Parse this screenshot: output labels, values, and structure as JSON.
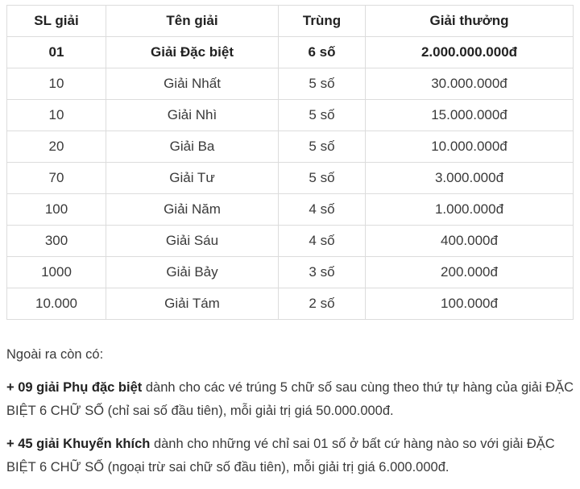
{
  "table": {
    "headers": [
      "SL giải",
      "Tên giải",
      "Trùng",
      "Giải thưởng"
    ],
    "rows": [
      [
        "01",
        "Giải Đặc biệt",
        "6 số",
        "2.000.000.000đ"
      ],
      [
        "10",
        "Giải Nhất",
        "5 số",
        "30.000.000đ"
      ],
      [
        "10",
        "Giải Nhì",
        "5 số",
        "15.000.000đ"
      ],
      [
        "20",
        "Giải Ba",
        "5 số",
        "10.000.000đ"
      ],
      [
        "70",
        "Giải Tư",
        "5 số",
        "3.000.000đ"
      ],
      [
        "100",
        "Giải Năm",
        "4 số",
        "1.000.000đ"
      ],
      [
        "300",
        "Giải Sáu",
        "4 số",
        "400.000đ"
      ],
      [
        "1000",
        "Giải Bảy",
        "3 số",
        "200.000đ"
      ],
      [
        "10.000",
        "Giải Tám",
        "2 số",
        "100.000đ"
      ]
    ]
  },
  "notes": {
    "intro": "Ngoài ra còn có:",
    "p1_bold": "+ 09 giải Phụ đặc biệt",
    "p1_text": " dành cho các vé trúng 5 chữ số sau cùng theo thứ tự hàng của giải ĐẶC BIỆT 6 CHỮ SỐ (chỉ sai số đầu tiên), mỗi giải trị giá 50.000.000đ.",
    "p2_bold": "+ 45 giải Khuyến khích",
    "p2_text": " dành cho những vé chỉ sai 01 số ở bất cứ hàng nào so với giải ĐẶC BIỆT 6 CHỮ SỐ (ngoại trừ sai chữ số đầu tiên), mỗi giải trị giá 6.000.000đ."
  }
}
